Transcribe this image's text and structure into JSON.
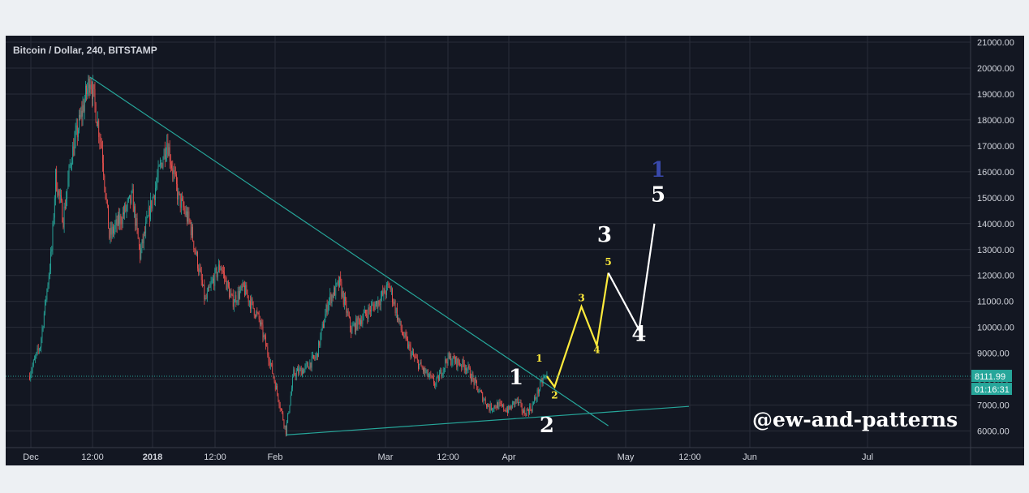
{
  "chart_data": {
    "type": "candlestick",
    "title": "Bitcoin / Dollar, 240, BITSTAMP",
    "x_ticks": [
      "Dec",
      "12:00",
      "2018",
      "12:00",
      "Feb",
      "Mar",
      "12:00",
      "Apr",
      "May",
      "12:00",
      "Jun",
      "Jul"
    ],
    "y_ticks": [
      "21000.00",
      "20000.00",
      "19000.00",
      "18000.00",
      "17000.00",
      "16000.00",
      "15000.00",
      "14000.00",
      "13000.00",
      "12000.00",
      "11000.00",
      "10000.00",
      "9000.00",
      "8000.00",
      "7000.00",
      "6000.00"
    ],
    "ylim": [
      5300,
      21400
    ],
    "last_price": "8111.99",
    "countdown": "01:16:31",
    "price_path": [
      [
        "2017-12-01",
        8100
      ],
      [
        "2017-12-04",
        9300
      ],
      [
        "2017-12-07",
        13000
      ],
      [
        "2017-12-08",
        15800
      ],
      [
        "2017-12-10",
        14200
      ],
      [
        "2017-12-12",
        16500
      ],
      [
        "2017-12-17",
        19650
      ],
      [
        "2017-12-20",
        17000
      ],
      [
        "2017-12-22",
        13500
      ],
      [
        "2017-12-25",
        14200
      ],
      [
        "2017-12-28",
        15000
      ],
      [
        "2017-12-30",
        12800
      ],
      [
        "2018-01-02",
        14800
      ],
      [
        "2018-01-06",
        17200
      ],
      [
        "2018-01-09",
        15000
      ],
      [
        "2018-01-12",
        14000
      ],
      [
        "2018-01-16",
        11000
      ],
      [
        "2018-01-18",
        11800
      ],
      [
        "2018-01-20",
        12400
      ],
      [
        "2018-01-23",
        11000
      ],
      [
        "2018-01-26",
        11500
      ],
      [
        "2018-01-30",
        10300
      ],
      [
        "2018-02-02",
        8600
      ],
      [
        "2018-02-06",
        6000
      ],
      [
        "2018-02-08",
        8200
      ],
      [
        "2018-02-11",
        8400
      ],
      [
        "2018-02-14",
        8900
      ],
      [
        "2018-02-17",
        11000
      ],
      [
        "2018-02-20",
        11700
      ],
      [
        "2018-02-23",
        9900
      ],
      [
        "2018-02-26",
        10400
      ],
      [
        "2018-03-02",
        11000
      ],
      [
        "2018-03-05",
        11600
      ],
      [
        "2018-03-08",
        9900
      ],
      [
        "2018-03-11",
        8900
      ],
      [
        "2018-03-14",
        8300
      ],
      [
        "2018-03-17",
        7800
      ],
      [
        "2018-03-20",
        8800
      ],
      [
        "2018-03-22",
        8700
      ],
      [
        "2018-03-25",
        8500
      ],
      [
        "2018-03-28",
        7600
      ],
      [
        "2018-03-31",
        6900
      ],
      [
        "2018-04-02",
        7000
      ],
      [
        "2018-04-05",
        6800
      ],
      [
        "2018-04-07",
        7200
      ],
      [
        "2018-04-09",
        6700
      ],
      [
        "2018-04-11",
        6900
      ],
      [
        "2018-04-14",
        8000
      ],
      [
        "2018-04-15",
        8112
      ]
    ],
    "trendlines": [
      {
        "name": "resistance",
        "color": "#26a69a",
        "points": [
          [
            "2017-12-17",
            19650
          ],
          [
            "2018-05-01",
            6200
          ]
        ]
      },
      {
        "name": "support",
        "color": "#26a69a",
        "points": [
          [
            "2018-02-06",
            5850
          ],
          [
            "2018-05-22",
            6950
          ]
        ]
      }
    ],
    "projection_paths": [
      {
        "color": "#ffeb3b",
        "points": [
          [
            "2018-04-15",
            8112
          ],
          [
            "2018-04-17",
            7700
          ],
          [
            "2018-04-24",
            10800
          ],
          [
            "2018-04-28",
            9300
          ],
          [
            "2018-05-01",
            12100
          ]
        ]
      },
      {
        "color": "#ffffff",
        "points": [
          [
            "2018-05-01",
            12100
          ],
          [
            "2018-05-09",
            9900
          ],
          [
            "2018-05-13",
            14000
          ]
        ]
      }
    ],
    "wave_labels": [
      {
        "text": "1",
        "color": "#ffffff",
        "size": "large",
        "anchor": [
          "2018-04-07",
          7800
        ]
      },
      {
        "text": "2",
        "color": "#ffffff",
        "size": "large",
        "anchor": [
          "2018-04-15",
          5950
        ]
      },
      {
        "text": "3",
        "color": "#ffffff",
        "size": "large",
        "anchor": [
          "2018-04-30",
          13300
        ]
      },
      {
        "text": "4",
        "color": "#ffffff",
        "size": "large",
        "anchor": [
          "2018-05-09",
          9480
        ]
      },
      {
        "text": "5",
        "color": "#ffffff",
        "size": "large",
        "anchor": [
          "2018-05-14",
          14850
        ]
      },
      {
        "text": "1",
        "color": "#3949ab",
        "size": "large",
        "anchor": [
          "2018-05-14",
          15800
        ]
      },
      {
        "text": "1",
        "color": "#ffeb3b",
        "size": "small",
        "anchor": [
          "2018-04-13",
          8680
        ]
      },
      {
        "text": "2",
        "color": "#ffeb3b",
        "size": "small",
        "anchor": [
          "2018-04-17",
          7250
        ]
      },
      {
        "text": "3",
        "color": "#ffeb3b",
        "size": "small",
        "anchor": [
          "2018-04-24",
          11000
        ]
      },
      {
        "text": "4",
        "color": "#ffeb3b",
        "size": "small",
        "anchor": [
          "2018-04-28",
          9000
        ]
      },
      {
        "text": "5",
        "color": "#ffeb3b",
        "size": "small",
        "anchor": [
          "2018-05-01",
          12400
        ]
      }
    ],
    "watermark": "@ew-and-patterns"
  },
  "colors": {
    "background": "#131722",
    "grid": "#2a2e39",
    "axis_text": "#d1d4dc",
    "up_candle": "#26a69a",
    "down_candle": "#ef5350",
    "price_label_bg": "#26a69a"
  }
}
